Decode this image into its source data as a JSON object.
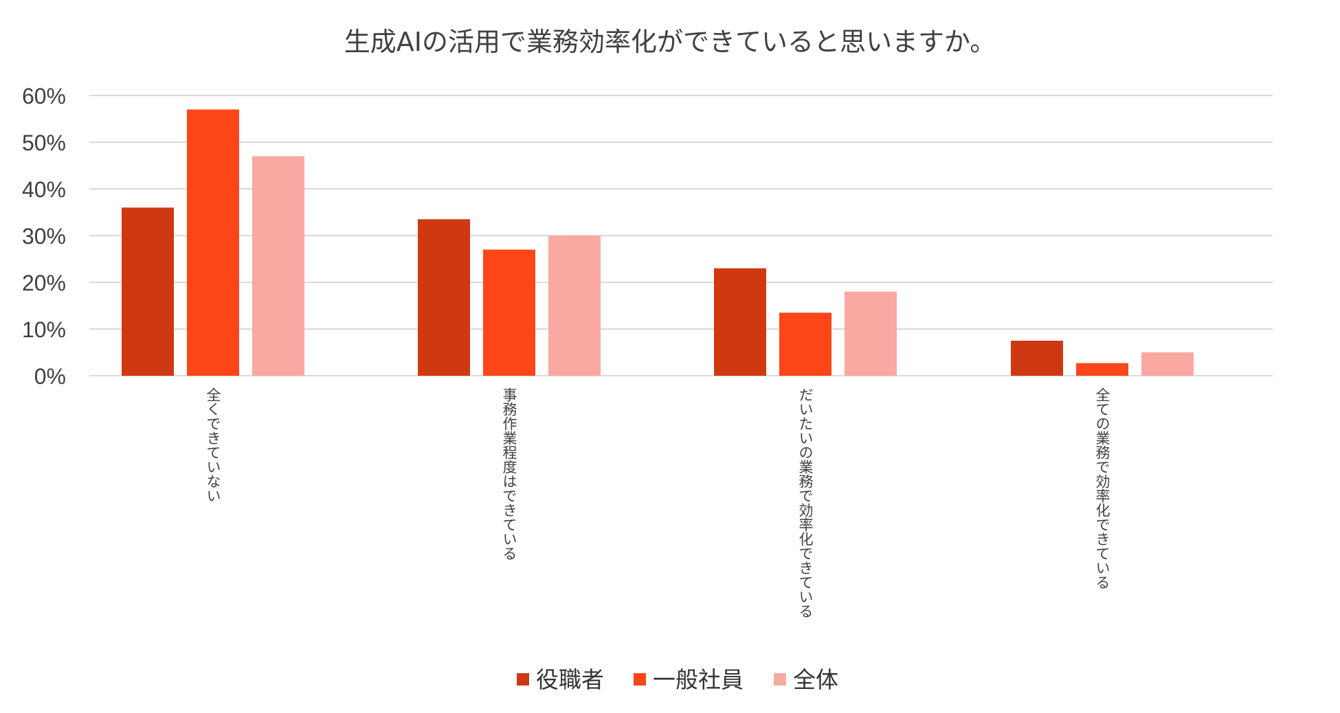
{
  "chart_data": {
    "type": "bar",
    "title": "生成AIの活用で業務効率化ができていると思いますか。",
    "categories": [
      "全くできていない",
      "事務作業程度はできている",
      "だいたいの業務で効率化できている",
      "全ての業務で効率化できている"
    ],
    "series": [
      {
        "name": "役職者",
        "color": "#cf3912",
        "values": [
          36,
          33.5,
          23,
          7.5
        ]
      },
      {
        "name": "一般社員",
        "color": "#fc4619",
        "values": [
          57,
          27,
          13.5,
          2.7
        ]
      },
      {
        "name": "全体",
        "color": "#f9a9a1",
        "values": [
          47,
          30,
          18,
          5
        ]
      }
    ],
    "ylim": [
      0,
      60
    ],
    "yticks": [
      "0%",
      "10%",
      "20%",
      "30%",
      "40%",
      "50%",
      "60%"
    ],
    "ytick_values": [
      0,
      10,
      20,
      30,
      40,
      50,
      60
    ],
    "grid": true,
    "legend_position": "bottom"
  }
}
